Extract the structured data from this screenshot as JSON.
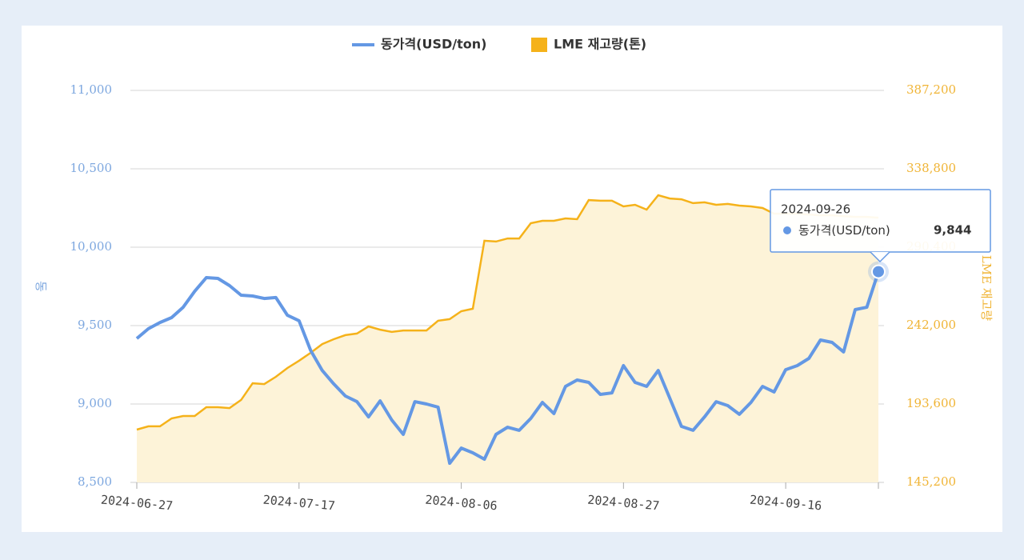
{
  "chart_data": {
    "type": "line-area",
    "categories": [
      "2024-06-27",
      null,
      null,
      null,
      null,
      null,
      null,
      null,
      null,
      null,
      null,
      null,
      null,
      null,
      "2024-07-17",
      null,
      null,
      null,
      null,
      null,
      null,
      null,
      null,
      null,
      null,
      null,
      null,
      null,
      "2024-08-06",
      null,
      null,
      null,
      null,
      null,
      null,
      null,
      null,
      null,
      null,
      null,
      null,
      null,
      "2024-08-27",
      null,
      null,
      null,
      null,
      null,
      null,
      null,
      null,
      null,
      null,
      null,
      null,
      null,
      "2024-09-16",
      null,
      null,
      null,
      null,
      null,
      null,
      null,
      "2024-09-26"
    ],
    "series": [
      {
        "name": "동가격(USD/ton)",
        "color": "#6498e4",
        "axis": "y",
        "values": [
          9418,
          9480,
          9520,
          9551,
          9617,
          9719,
          9806,
          9801,
          9755,
          9694,
          9689,
          9673,
          9679,
          9566,
          9531,
          9342,
          9214,
          9128,
          9051,
          9015,
          8918,
          9020,
          8898,
          8806,
          9015,
          9000,
          8980,
          8622,
          8719,
          8689,
          8648,
          8806,
          8852,
          8832,
          8908,
          9010,
          8939,
          9112,
          9153,
          9138,
          9061,
          9071,
          9245,
          9138,
          9112,
          9214,
          9036,
          8857,
          8832,
          8918,
          9015,
          8990,
          8934,
          9010,
          9112,
          9077,
          9219,
          9245,
          9291,
          9408,
          9393,
          9332,
          9602,
          9617,
          9844
        ],
        "value_labels": [
          null,
          null,
          null,
          null,
          null,
          null,
          null,
          null,
          null,
          null,
          null,
          null,
          null,
          null,
          null,
          null,
          null,
          null,
          null,
          null,
          null,
          null,
          null,
          null,
          null,
          null,
          null,
          null,
          null,
          null,
          null,
          null,
          null,
          null,
          null,
          null,
          null,
          null,
          null,
          null,
          null,
          null,
          null,
          null,
          null,
          null,
          null,
          null,
          null,
          null,
          null,
          null,
          null,
          null,
          null,
          null,
          null,
          null,
          null,
          null,
          null,
          null,
          null,
          null,
          "9,844"
        ]
      },
      {
        "name": "LME 재고량(톤)",
        "color": "#f5b21a",
        "axis": "y2",
        "values": [
          177800,
          179800,
          179800,
          184700,
          186200,
          186200,
          191600,
          191600,
          191100,
          196100,
          206400,
          205900,
          210400,
          215800,
          220300,
          225200,
          230600,
          233600,
          236100,
          237100,
          241500,
          239500,
          238100,
          239000,
          239000,
          239000,
          245000,
          246000,
          250900,
          252400,
          294400,
          293900,
          295800,
          295800,
          305200,
          306700,
          306700,
          308200,
          307700,
          319500,
          319100,
          319100,
          315600,
          316600,
          313600,
          322500,
          320500,
          320000,
          317600,
          318100,
          316600,
          317100,
          316100,
          315600,
          314600,
          311100,
          311100,
          311100,
          310600,
          310100,
          310100,
          309600,
          309100,
          309100,
          308600
        ]
      }
    ],
    "ylabel": "동",
    "y2label": "LME 재고량",
    "ylim": [
      8500,
      11000
    ],
    "yticks": [
      {
        "value": 8500,
        "label": "8,500"
      },
      {
        "value": 9000,
        "label": "9,000"
      },
      {
        "value": 9500,
        "label": "9,500"
      },
      {
        "value": 10000,
        "label": "10,000"
      },
      {
        "value": 10500,
        "label": "10,500"
      },
      {
        "value": 11000,
        "label": "11,000"
      }
    ],
    "y2lim": [
      145200,
      387200
    ],
    "y2ticks": [
      {
        "value": 145200,
        "label": "145,200"
      },
      {
        "value": 193600,
        "label": "193,600"
      },
      {
        "value": 242000,
        "label": "242,000"
      },
      {
        "value": 290400,
        "label": "290,400"
      },
      {
        "value": 338800,
        "label": "338,800"
      },
      {
        "value": 387200,
        "label": "387,200"
      }
    ],
    "grid": true
  }
}
